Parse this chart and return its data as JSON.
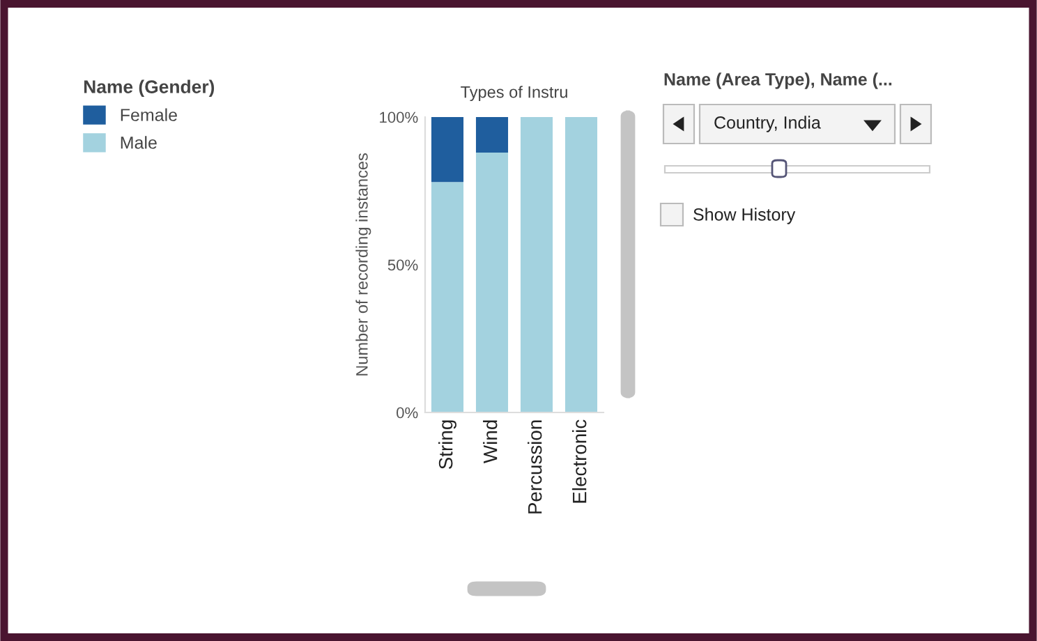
{
  "chart_data": {
    "type": "bar",
    "title": "Types of Instru",
    "ylabel": "Number of recording instances",
    "legend_title": "Name (Gender)",
    "categories": [
      "String",
      "Wind",
      "Percussion",
      "Electronic"
    ],
    "stacked": true,
    "series": [
      {
        "name": "Male",
        "color": "#a3d2df",
        "values": [
          78,
          88,
          100,
          100
        ]
      },
      {
        "name": "Female",
        "color": "#1f5e9e",
        "values": [
          22,
          12,
          0,
          0
        ]
      }
    ],
    "ylim": [
      0,
      100
    ],
    "yticks": [
      {
        "value": 0,
        "label": "0%"
      },
      {
        "value": 50,
        "label": "50%"
      },
      {
        "value": 100,
        "label": "100%"
      }
    ],
    "legend": "top left",
    "annotations": [
      "Name (Area Type), Name (...",
      "Country, India",
      "Show History"
    ]
  }
}
